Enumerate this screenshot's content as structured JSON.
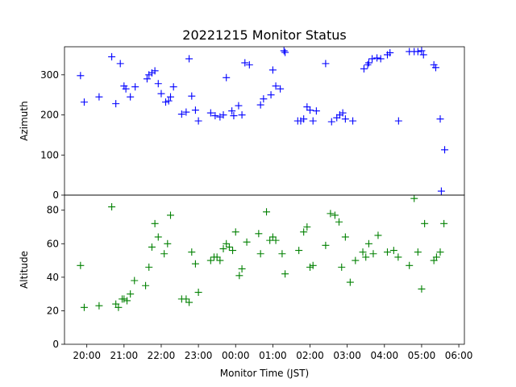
{
  "chart_data": {
    "type": "scatter",
    "title": "20221215 Monitor Status",
    "xlabel": "Monitor Time (JST)",
    "x_ticks": [
      "20:00",
      "21:00",
      "22:00",
      "23:00",
      "00:00",
      "01:00",
      "02:00",
      "03:00",
      "04:00",
      "05:00",
      "06:00"
    ],
    "x_range_hours": [
      19.4,
      30.15
    ],
    "marker": "+",
    "panels": [
      {
        "name": "azimuth",
        "ylabel": "Azimuth",
        "ylim": [
          0,
          370
        ],
        "yticks": [
          "0",
          "100",
          "200",
          "300"
        ],
        "ytick_values": [
          0,
          100,
          200,
          300
        ],
        "color": "#0000ff",
        "x": [
          19.83,
          19.93,
          20.33,
          20.67,
          20.78,
          20.9,
          21.0,
          21.05,
          21.17,
          21.3,
          21.62,
          21.67,
          21.75,
          21.83,
          21.92,
          22.0,
          22.12,
          22.2,
          22.25,
          22.33,
          22.55,
          22.67,
          22.75,
          22.82,
          22.92,
          23.0,
          23.33,
          23.45,
          23.58,
          23.67,
          23.75,
          23.9,
          23.95,
          24.08,
          24.17,
          24.25,
          24.37,
          24.67,
          24.75,
          24.95,
          25.0,
          25.08,
          25.2,
          25.3,
          25.33,
          25.67,
          25.75,
          25.83,
          25.92,
          26.0,
          26.08,
          26.17,
          26.42,
          26.58,
          26.72,
          26.8,
          26.88,
          26.95,
          27.15,
          27.45,
          27.55,
          27.58,
          27.67,
          27.8,
          27.9,
          28.08,
          28.15,
          28.38,
          28.67,
          28.8,
          28.9,
          29.0,
          29.05,
          29.33,
          29.38,
          29.5,
          29.53,
          29.62
        ],
        "y": [
          298,
          232,
          245,
          345,
          228,
          328,
          272,
          265,
          245,
          270,
          290,
          300,
          305,
          310,
          278,
          253,
          232,
          235,
          245,
          270,
          202,
          207,
          340,
          247,
          212,
          185,
          205,
          198,
          195,
          200,
          293,
          210,
          198,
          223,
          200,
          330,
          325,
          225,
          240,
          250,
          312,
          272,
          265,
          360,
          356,
          185,
          185,
          190,
          220,
          212,
          185,
          210,
          328,
          183,
          193,
          200,
          205,
          190,
          185,
          315,
          325,
          330,
          340,
          342,
          340,
          350,
          355,
          185,
          358,
          358,
          358,
          360,
          350,
          325,
          318,
          190,
          10,
          113
        ]
      },
      {
        "name": "altitude",
        "ylabel": "Altitude",
        "ylim": [
          0,
          89
        ],
        "yticks": [
          "0",
          "20",
          "40",
          "60",
          "80"
        ],
        "ytick_values": [
          0,
          20,
          40,
          60,
          80
        ],
        "color": "#008000",
        "x": [
          19.83,
          19.93,
          20.33,
          20.67,
          20.78,
          20.85,
          20.95,
          21.0,
          21.08,
          21.17,
          21.28,
          21.58,
          21.67,
          21.75,
          21.83,
          21.92,
          22.08,
          22.17,
          22.25,
          22.55,
          22.67,
          22.75,
          22.82,
          22.92,
          23.0,
          23.33,
          23.42,
          23.5,
          23.58,
          23.67,
          23.75,
          23.83,
          23.92,
          24.0,
          24.1,
          24.17,
          24.3,
          24.62,
          24.67,
          24.83,
          24.92,
          25.0,
          25.08,
          25.25,
          25.33,
          25.7,
          25.83,
          25.92,
          26.0,
          26.08,
          26.42,
          26.55,
          26.67,
          26.78,
          26.85,
          26.95,
          27.08,
          27.22,
          27.42,
          27.5,
          27.58,
          27.7,
          27.83,
          28.08,
          28.25,
          28.37,
          28.67,
          28.8,
          28.9,
          29.0,
          29.08,
          29.33,
          29.4,
          29.5,
          29.6
        ],
        "y": [
          47,
          22,
          23,
          82,
          24,
          22,
          27,
          27,
          26,
          30,
          38,
          35,
          46,
          58,
          72,
          64,
          54,
          60,
          77,
          27,
          27,
          25,
          55,
          48,
          31,
          50,
          52,
          52,
          50,
          57,
          60,
          58,
          56,
          67,
          41,
          45,
          61,
          66,
          54,
          79,
          62,
          64,
          62,
          54,
          42,
          56,
          67,
          70,
          46,
          47,
          59,
          78,
          77,
          73,
          46,
          64,
          37,
          50,
          55,
          52,
          60,
          54,
          65,
          55,
          56,
          52,
          47,
          87,
          55,
          33,
          72,
          50,
          52,
          55,
          72
        ]
      }
    ]
  }
}
